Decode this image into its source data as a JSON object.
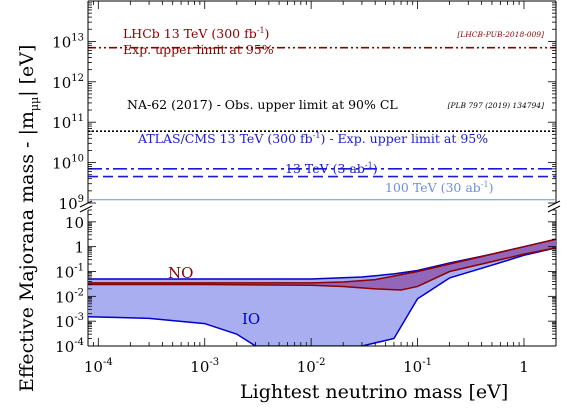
{
  "chart_data": [
    {
      "panel": "upper",
      "type": "line",
      "y_scale": "log",
      "ylim": [
        1000000000.0,
        100000000000000.0
      ],
      "x_scale": "log",
      "xlim": [
        8e-05,
        2
      ],
      "y_ticks": [
        {
          "value": 1000000000.0,
          "base": "10",
          "exp": "9"
        },
        {
          "value": 10000000000.0,
          "base": "10",
          "exp": "10"
        },
        {
          "value": 100000000000.0,
          "base": "10",
          "exp": "11"
        },
        {
          "value": 1000000000000.0,
          "base": "10",
          "exp": "12"
        },
        {
          "value": 10000000000000.0,
          "base": "10",
          "exp": "13"
        }
      ],
      "series": [
        {
          "name_parts": [
            "LHCb 13 TeV (300 fb",
            "-1",
            ")"
          ],
          "value": 7000000000000.0,
          "style": "dash-dot-dot",
          "color": "#8b0000"
        },
        {
          "name": "NA-62 (2017) - Obs. upper limit at 90% CL",
          "value": 60000000000.0,
          "style": "dotted",
          "color": "#000000"
        },
        {
          "name_parts": [
            "ATLAS/CMS 13 TeV (300 fb",
            "-1",
            ") - Exp. upper limit at 95%"
          ],
          "value": 7000000000.0,
          "style": "dash-dot",
          "color": "#1a1ad6"
        },
        {
          "name": "13 TeV (3 ab⁻¹)",
          "value": 4500000000.0,
          "style": "dashed",
          "color": "#1a1ad6"
        },
        {
          "name": "100 TeV (30 ab⁻¹)",
          "value": 1200000000.0,
          "style": "solid",
          "color": "#7090d8"
        }
      ],
      "annotations": [
        {
          "text": "Exp. upper limit at 95%",
          "color": "#8b0000"
        },
        {
          "text": "[LHCB-PUB-2018-009]",
          "color": "#8b0000"
        },
        {
          "text": "[PLB 797 (2019) 134794]",
          "color": "#000000"
        }
      ]
    },
    {
      "panel": "lower",
      "type": "area",
      "y_scale": "log",
      "ylim": [
        0.0001,
        30
      ],
      "x_scale": "log",
      "xlim": [
        8e-05,
        2
      ],
      "y_ticks": [
        {
          "value": 0.0001,
          "base": "10",
          "exp": "-4"
        },
        {
          "value": 0.001,
          "base": "10",
          "exp": "-3"
        },
        {
          "value": 0.01,
          "base": "10",
          "exp": "-2"
        },
        {
          "value": 0.1,
          "base": "10",
          "exp": "-1"
        },
        {
          "value": 1,
          "base": "1",
          "exp": ""
        },
        {
          "value": 10,
          "base": "10",
          "exp": ""
        }
      ],
      "x_ticks": [
        {
          "value": 0.0001,
          "base": "10",
          "exp": "-4"
        },
        {
          "value": 0.001,
          "base": "10",
          "exp": "-3"
        },
        {
          "value": 0.01,
          "base": "10",
          "exp": "-2"
        },
        {
          "value": 0.1,
          "base": "10",
          "exp": "-1"
        },
        {
          "value": 1,
          "base": "1",
          "exp": ""
        }
      ],
      "series": [
        {
          "name": "NO",
          "color": "#8b0000",
          "fill": "#8e5ab0",
          "x": [
            8e-05,
            0.001,
            0.01,
            0.02,
            0.04,
            0.07,
            0.1,
            0.2,
            0.5,
            1,
            2
          ],
          "upper": [
            0.035,
            0.035,
            0.035,
            0.038,
            0.047,
            0.075,
            0.1,
            0.2,
            0.5,
            1,
            2
          ],
          "lower": [
            0.03,
            0.03,
            0.028,
            0.025,
            0.02,
            0.018,
            0.025,
            0.1,
            0.25,
            0.5,
            0.9
          ]
        },
        {
          "name": "IO",
          "color": "#0000cc",
          "fill": "#9aa0ee",
          "x": [
            8e-05,
            0.0003,
            0.001,
            0.002,
            0.003,
            0.005,
            0.01,
            0.03,
            0.06,
            0.1,
            0.2,
            0.5,
            1,
            2
          ],
          "upper": [
            0.05,
            0.05,
            0.05,
            0.05,
            0.05,
            0.05,
            0.05,
            0.06,
            0.08,
            0.11,
            0.22,
            0.5,
            1,
            2
          ],
          "lower": [
            0.0015,
            0.0013,
            0.0008,
            0.0003,
            0.0001,
            0.0001,
            0.0001,
            0.0001,
            0.0002,
            0.008,
            0.055,
            0.18,
            0.45,
            0.9
          ]
        }
      ]
    }
  ],
  "labels": {
    "y_axis": "Effective Majorana  mass - |mμμ| [eV]",
    "x_axis": "Lightest neutrino mass [eV]",
    "lhcb": "LHCb 13 TeV (300 fb",
    "lhcb_sup": "-1",
    "lhcb_close": ")",
    "lhcb_sub": "Exp. upper limit at 95%",
    "lhcb_ref": "[LHCB-PUB-2018-009]",
    "na62": "NA-62 (2017) - Obs. upper limit at 90% CL",
    "na62_ref": "[PLB 797 (2019) 134794]",
    "atlas": "ATLAS/CMS 13 TeV (300 fb",
    "atlas_sup": "-1",
    "atlas_close": ") - Exp. upper limit at 95%",
    "hl": "13 TeV (3 ab",
    "hl_sup": "-1",
    "hl_close": ")",
    "fcc": "100 TeV (30 ab",
    "fcc_sup": "-1",
    "fcc_close": ")",
    "no": "NO",
    "io": "IO"
  },
  "colors": {
    "lhcb": "#8b0000",
    "na62": "#000000",
    "atlas": "#1a1ad6",
    "fcc": "#7090d8",
    "no_line": "#8b0000",
    "no_fill": "#8e5ab0",
    "io_line": "#0000cc",
    "io_fill": "#9aa0ee"
  }
}
